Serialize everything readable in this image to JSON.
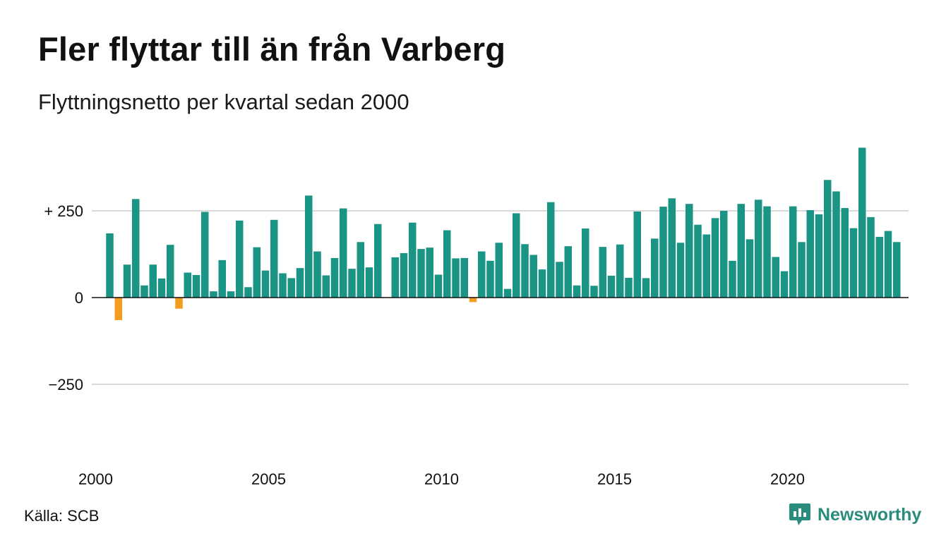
{
  "chart_data": {
    "type": "bar",
    "title": "Fler flyttar till än från Varberg",
    "subtitle": "Flyttningsnetto per kvartal sedan 2000",
    "x_start_year": 2000,
    "x_ticks": [
      "2000",
      "2005",
      "2010",
      "2015",
      "2020"
    ],
    "y_ticks": [
      {
        "value": 250,
        "label": "+ 250"
      },
      {
        "value": 0,
        "label": "0"
      },
      {
        "value": -250,
        "label": "−250"
      }
    ],
    "ylim": [
      -450,
      450
    ],
    "grid": true,
    "colors": {
      "positive": "#1a9485",
      "negative": "#f39c1e",
      "grid": "#d9d9d9",
      "baseline": "#111111"
    },
    "values": [
      185,
      -65,
      95,
      284,
      35,
      95,
      55,
      152,
      -32,
      72,
      65,
      247,
      18,
      108,
      18,
      222,
      30,
      145,
      78,
      224,
      70,
      56,
      85,
      294,
      133,
      64,
      114,
      257,
      83,
      160,
      87,
      212,
      0,
      116,
      128,
      216,
      140,
      144,
      66,
      194,
      113,
      114,
      -13,
      133,
      106,
      158,
      25,
      243,
      154,
      123,
      81,
      275,
      103,
      148,
      35,
      199,
      34,
      146,
      63,
      153,
      57,
      248,
      56,
      170,
      262,
      286,
      158,
      270,
      210,
      182,
      229,
      250,
      106,
      270,
      168,
      282,
      263,
      117,
      76,
      263,
      160,
      252,
      240,
      339,
      306,
      258,
      200,
      432,
      232,
      175,
      192,
      160
    ]
  },
  "source": "Källa: SCB",
  "logo_text": "Newsworthy",
  "logo_icon": "bar-chart-speech-bubble-icon"
}
